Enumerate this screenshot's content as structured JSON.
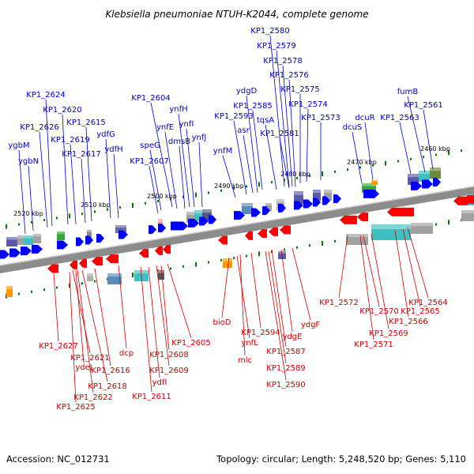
{
  "title": "Klebsiella pneumoniae NTUH-K2044, complete genome",
  "accession_text": "Accession: NC_012731",
  "summary_text": "Topology: circular; Length: 5,248,520 bp; Genes: 5,110",
  "colors": {
    "forward": "#0000cc",
    "forward_arrow": "#0000ff",
    "reverse": "#cc0000",
    "reverse_arrow": "#ff0000",
    "axis": "#888888",
    "tick": "#008000"
  },
  "scale_labels": [
    {
      "id": "2460",
      "text": "2460 kbp"
    },
    {
      "id": "2470",
      "text": "2470 kbp"
    },
    {
      "id": "2480",
      "text": "2480 kbp"
    },
    {
      "id": "2490",
      "text": "2490 kbp"
    },
    {
      "id": "2500",
      "text": "2500 kbp"
    },
    {
      "id": "2510",
      "text": "2510 kbp"
    },
    {
      "id": "2520",
      "text": "2520 kbp"
    }
  ],
  "forward_genes": [
    {
      "id": "KP1_2580",
      "label": "KP1_2580"
    },
    {
      "id": "KP1_2579",
      "label": "KP1_2579"
    },
    {
      "id": "KP1_2578",
      "label": "KP1_2578"
    },
    {
      "id": "KP1_2576",
      "label": "KP1_2576"
    },
    {
      "id": "KP1_2575",
      "label": "KP1_2575"
    },
    {
      "id": "KP1_2574",
      "label": "KP1_2574"
    },
    {
      "id": "KP1_2573",
      "label": "KP1_2573"
    },
    {
      "id": "KP1_2581",
      "label": "KP1_2581"
    },
    {
      "id": "tqsA",
      "label": "tqsA"
    },
    {
      "id": "ydgD",
      "label": "ydgD"
    },
    {
      "id": "KP1_2585",
      "label": "KP1_2585"
    },
    {
      "id": "KP1_2593",
      "label": "KP1_2593"
    },
    {
      "id": "asr",
      "label": "asr"
    },
    {
      "id": "ynfM",
      "label": "ynfM"
    },
    {
      "id": "KP1_2604",
      "label": "KP1_2604"
    },
    {
      "id": "ynfH",
      "label": "ynfH"
    },
    {
      "id": "ynfI",
      "label": "ynfI"
    },
    {
      "id": "ynfE",
      "label": "ynfE"
    },
    {
      "id": "ynfJ",
      "label": "ynfJ"
    },
    {
      "id": "dmsB",
      "label": "dmsB"
    },
    {
      "id": "speG",
      "label": "speG"
    },
    {
      "id": "KP1_2607",
      "label": "KP1_2607"
    },
    {
      "id": "fumB",
      "label": "fumB"
    },
    {
      "id": "KP1_2561",
      "label": "KP1_2561"
    },
    {
      "id": "KP1_2563",
      "label": "KP1_2563"
    },
    {
      "id": "dcuR",
      "label": "dcuR"
    },
    {
      "id": "dcuS",
      "label": "dcuS"
    },
    {
      "id": "KP1_2624",
      "label": "KP1_2624"
    },
    {
      "id": "KP1_2620",
      "label": "KP1_2620"
    },
    {
      "id": "KP1_2626",
      "label": "KP1_2626"
    },
    {
      "id": "KP1_2615",
      "label": "KP1_2615"
    },
    {
      "id": "ygbM",
      "label": "ygbM"
    },
    {
      "id": "KP1_2619",
      "label": "KP1_2619"
    },
    {
      "id": "ydfG",
      "label": "ydfG"
    },
    {
      "id": "ygbN",
      "label": "ygbN"
    },
    {
      "id": "KP1_2617",
      "label": "KP1_2617"
    },
    {
      "id": "ydfH",
      "label": "ydfH"
    }
  ],
  "reverse_genes": [
    {
      "id": "KP1_2627",
      "label": "KP1_2627"
    },
    {
      "id": "KP1_2621",
      "label": "KP1_2621"
    },
    {
      "id": "ydeJ",
      "label": "ydeJ"
    },
    {
      "id": "KP1_2616",
      "label": "KP1_2616"
    },
    {
      "id": "dcp",
      "label": "dcp"
    },
    {
      "id": "KP1_2618",
      "label": "KP1_2618"
    },
    {
      "id": "KP1_2622",
      "label": "KP1_2622"
    },
    {
      "id": "KP1_2625",
      "label": "KP1_2625"
    },
    {
      "id": "KP1_2605",
      "label": "KP1_2605"
    },
    {
      "id": "KP1_2608",
      "label": "KP1_2608"
    },
    {
      "id": "KP1_2609",
      "label": "KP1_2609"
    },
    {
      "id": "ydfI",
      "label": "ydfI"
    },
    {
      "id": "KP1_2611",
      "label": "KP1_2611"
    },
    {
      "id": "bioD",
      "label": "bioD"
    },
    {
      "id": "ynfL",
      "label": "ynfL"
    },
    {
      "id": "mlc",
      "label": "mlc"
    },
    {
      "id": "KP1_2594",
      "label": "KP1_2594"
    },
    {
      "id": "ydgE",
      "label": "ydgE"
    },
    {
      "id": "ydgF",
      "label": "ydgF"
    },
    {
      "id": "KP1_2587",
      "label": "KP1_2587"
    },
    {
      "id": "KP1_2589",
      "label": "KP1_2589"
    },
    {
      "id": "KP1_2590",
      "label": "KP1_2590"
    },
    {
      "id": "KP1_2572",
      "label": "KP1_2572"
    },
    {
      "id": "KP1_2570",
      "label": "KP1_2570"
    },
    {
      "id": "KP1_2569",
      "label": "KP1_2569"
    },
    {
      "id": "KP1_2571",
      "label": "KP1_2571"
    },
    {
      "id": "KP1_2565",
      "label": "KP1_2565"
    },
    {
      "id": "KP1_2564",
      "label": "KP1_2564"
    },
    {
      "id": "KP1_2566",
      "label": "KP1_2566"
    }
  ]
}
